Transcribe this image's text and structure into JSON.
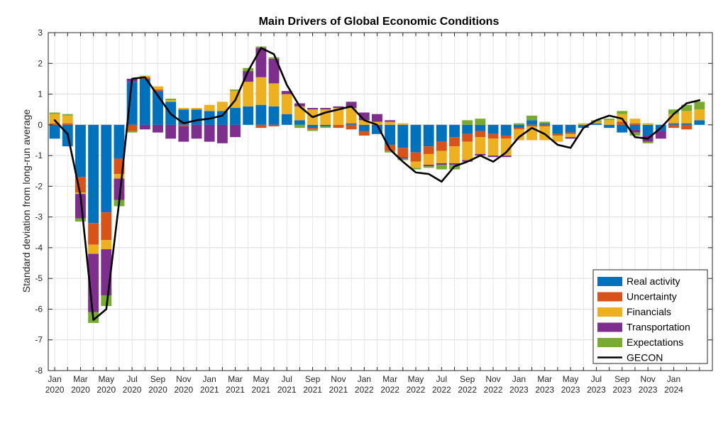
{
  "chart_data": {
    "type": "bar",
    "stacked": true,
    "title": "Main Drivers of Global Economic Conditions",
    "xlabel": "",
    "ylabel": "Standard deviation from long-run average",
    "ylim": [
      -8,
      3
    ],
    "yticks": [
      -8,
      -7,
      -6,
      -5,
      -4,
      -3,
      -2,
      -1,
      0,
      1,
      2,
      3
    ],
    "grid": true,
    "legend_position": "bottom-right",
    "categories": [
      "2020-01",
      "2020-02",
      "2020-03",
      "2020-04",
      "2020-05",
      "2020-06",
      "2020-07",
      "2020-08",
      "2020-09",
      "2020-10",
      "2020-11",
      "2020-12",
      "2021-01",
      "2021-02",
      "2021-03",
      "2021-04",
      "2021-05",
      "2021-06",
      "2021-07",
      "2021-08",
      "2021-09",
      "2021-10",
      "2021-11",
      "2021-12",
      "2022-01",
      "2022-02",
      "2022-03",
      "2022-04",
      "2022-05",
      "2022-06",
      "2022-07",
      "2022-08",
      "2022-09",
      "2022-10",
      "2022-11",
      "2022-12",
      "2023-01",
      "2023-02",
      "2023-03",
      "2023-04",
      "2023-05",
      "2023-06",
      "2023-07",
      "2023-08",
      "2023-09",
      "2023-10",
      "2023-11",
      "2023-12",
      "2024-01",
      "2024-02",
      "2024-03"
    ],
    "xtick_labels": [
      {
        "index": 0,
        "month": "Jan",
        "year": "2020"
      },
      {
        "index": 2,
        "month": "Mar",
        "year": "2020"
      },
      {
        "index": 4,
        "month": "May",
        "year": "2020"
      },
      {
        "index": 6,
        "month": "Jul",
        "year": "2020"
      },
      {
        "index": 8,
        "month": "Sep",
        "year": "2020"
      },
      {
        "index": 10,
        "month": "Nov",
        "year": "2020"
      },
      {
        "index": 12,
        "month": "Jan",
        "year": "2021"
      },
      {
        "index": 14,
        "month": "Mar",
        "year": "2021"
      },
      {
        "index": 16,
        "month": "May",
        "year": "2021"
      },
      {
        "index": 18,
        "month": "Jul",
        "year": "2021"
      },
      {
        "index": 20,
        "month": "Sep",
        "year": "2021"
      },
      {
        "index": 22,
        "month": "Nov",
        "year": "2021"
      },
      {
        "index": 24,
        "month": "Jan",
        "year": "2022"
      },
      {
        "index": 26,
        "month": "Mar",
        "year": "2022"
      },
      {
        "index": 28,
        "month": "May",
        "year": "2022"
      },
      {
        "index": 30,
        "month": "Jul",
        "year": "2022"
      },
      {
        "index": 32,
        "month": "Sep",
        "year": "2022"
      },
      {
        "index": 34,
        "month": "Nov",
        "year": "2022"
      },
      {
        "index": 36,
        "month": "Jan",
        "year": "2023"
      },
      {
        "index": 38,
        "month": "Mar",
        "year": "2023"
      },
      {
        "index": 40,
        "month": "May",
        "year": "2023"
      },
      {
        "index": 42,
        "month": "Jul",
        "year": "2023"
      },
      {
        "index": 44,
        "month": "Sep",
        "year": "2023"
      },
      {
        "index": 46,
        "month": "Nov",
        "year": "2023"
      },
      {
        "index": 48,
        "month": "Jan",
        "year": "2024"
      }
    ],
    "series": [
      {
        "name": "Real activity",
        "color": "#0072BD",
        "values": [
          -0.45,
          -0.7,
          -1.7,
          -3.2,
          -2.85,
          -1.1,
          1.4,
          1.5,
          1.1,
          0.75,
          0.5,
          0.5,
          0.45,
          0.45,
          0.55,
          0.6,
          0.65,
          0.6,
          0.35,
          0.15,
          -0.1,
          -0.05,
          0.0,
          0.05,
          -0.2,
          -0.3,
          -0.65,
          -0.75,
          -0.9,
          -0.7,
          -0.55,
          -0.4,
          -0.3,
          -0.2,
          -0.3,
          -0.35,
          -0.1,
          0.15,
          0.05,
          -0.3,
          -0.25,
          -0.1,
          0.05,
          -0.1,
          -0.25,
          -0.15,
          -0.35,
          -0.2,
          0.05,
          0.05,
          0.15
        ]
      },
      {
        "name": "Uncertainty",
        "color": "#D95319",
        "values": [
          0.05,
          0.05,
          -0.5,
          -0.7,
          -0.9,
          -0.5,
          -0.2,
          0.05,
          0.05,
          0.0,
          -0.05,
          0.0,
          0.0,
          0.0,
          0.0,
          0.0,
          -0.1,
          -0.05,
          0.0,
          0.0,
          -0.05,
          0.0,
          -0.1,
          -0.15,
          -0.15,
          0.0,
          -0.2,
          -0.3,
          -0.3,
          -0.25,
          -0.3,
          -0.3,
          -0.25,
          -0.2,
          -0.15,
          -0.1,
          -0.05,
          -0.05,
          -0.05,
          -0.05,
          -0.05,
          0.0,
          0.0,
          0.0,
          0.1,
          0.05,
          0.0,
          0.0,
          -0.1,
          -0.15,
          0.0
        ]
      },
      {
        "name": "Financials",
        "color": "#EDB120",
        "values": [
          0.3,
          0.25,
          -0.05,
          -0.3,
          -0.3,
          -0.15,
          0.0,
          0.05,
          0.1,
          0.05,
          0.05,
          0.05,
          0.2,
          0.3,
          0.55,
          0.8,
          0.9,
          0.75,
          0.65,
          0.45,
          0.5,
          0.5,
          0.55,
          0.5,
          0.15,
          0.1,
          0.1,
          0.05,
          -0.2,
          -0.35,
          -0.4,
          -0.55,
          -0.6,
          -0.55,
          -0.55,
          -0.55,
          -0.35,
          -0.45,
          -0.45,
          -0.2,
          -0.1,
          0.05,
          0.05,
          0.15,
          0.25,
          0.15,
          0.05,
          0.0,
          0.3,
          0.4,
          0.35
        ]
      },
      {
        "name": "Transportation",
        "color": "#7E2F8E",
        "values": [
          0.0,
          0.0,
          -0.8,
          -1.9,
          -1.5,
          -0.7,
          0.1,
          -0.15,
          -0.25,
          -0.45,
          -0.5,
          -0.45,
          -0.55,
          -0.6,
          -0.4,
          0.35,
          0.95,
          0.8,
          0.1,
          0.1,
          0.05,
          0.05,
          0.05,
          0.2,
          0.25,
          0.25,
          0.05,
          -0.05,
          0.0,
          -0.05,
          -0.05,
          -0.05,
          -0.05,
          -0.05,
          -0.05,
          -0.05,
          0.0,
          0.0,
          0.0,
          0.0,
          -0.05,
          0.0,
          0.0,
          0.0,
          0.0,
          -0.1,
          -0.2,
          -0.25,
          0.0,
          0.0,
          0.0
        ]
      },
      {
        "name": "Expectations",
        "color": "#77AC30",
        "values": [
          0.05,
          0.05,
          -0.1,
          -0.35,
          -0.35,
          -0.2,
          -0.05,
          0.0,
          0.0,
          0.05,
          0.0,
          0.0,
          0.0,
          0.0,
          0.05,
          0.1,
          0.05,
          0.05,
          0.0,
          -0.1,
          -0.05,
          -0.05,
          0.0,
          0.0,
          0.0,
          0.0,
          -0.05,
          -0.05,
          -0.05,
          -0.05,
          -0.15,
          -0.15,
          0.15,
          0.2,
          0.0,
          0.0,
          0.05,
          0.15,
          0.05,
          0.0,
          0.0,
          0.0,
          0.05,
          0.05,
          0.1,
          -0.1,
          -0.05,
          0.0,
          0.15,
          0.2,
          0.25
        ]
      }
    ],
    "line": {
      "name": "GECON",
      "color": "#000000",
      "values": [
        0.15,
        -0.3,
        -2.3,
        -6.35,
        -6.0,
        -2.5,
        1.5,
        1.55,
        0.95,
        0.35,
        0.05,
        0.15,
        0.2,
        0.3,
        0.8,
        1.75,
        2.5,
        2.3,
        1.3,
        0.6,
        0.25,
        0.4,
        0.5,
        0.6,
        0.15,
        0.0,
        -0.8,
        -1.2,
        -1.55,
        -1.6,
        -1.85,
        -1.35,
        -1.2,
        -1.0,
        -1.2,
        -0.9,
        -0.4,
        -0.1,
        -0.3,
        -0.65,
        -0.75,
        -0.1,
        0.15,
        0.3,
        0.2,
        -0.4,
        -0.45,
        -0.1,
        0.35,
        0.7,
        0.8
      ]
    }
  }
}
